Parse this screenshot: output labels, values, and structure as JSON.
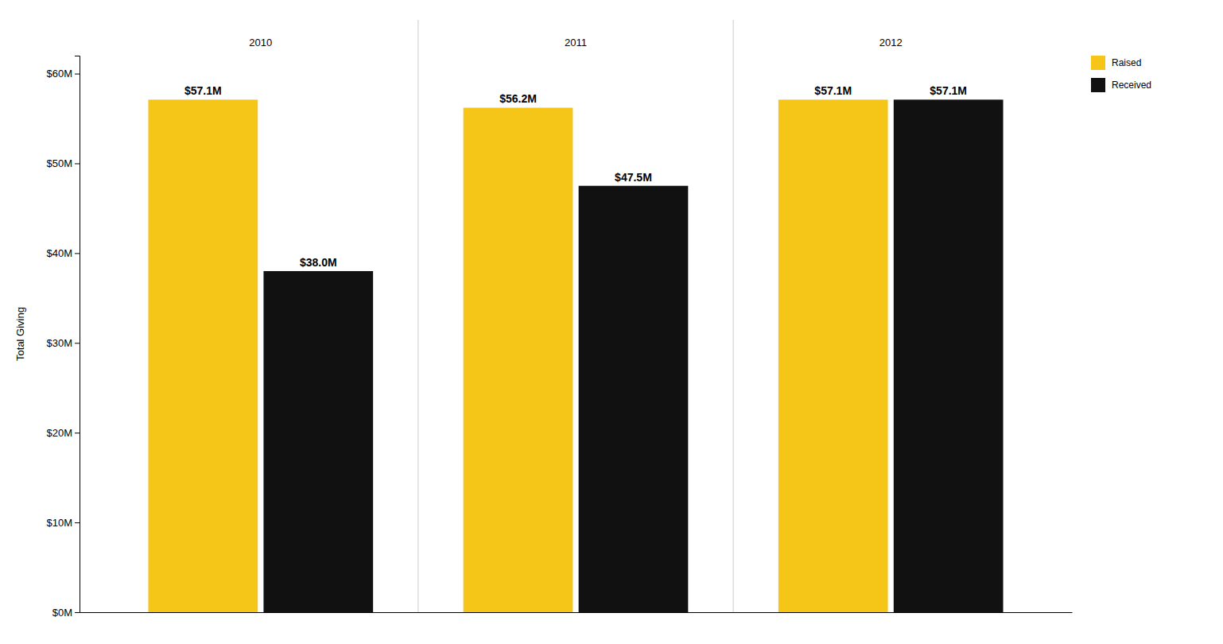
{
  "chart_data": {
    "type": "bar",
    "categories": [
      "2010",
      "2011",
      "2012"
    ],
    "series": [
      {
        "name": "Raised",
        "color": "#F5C518",
        "values": [
          57.1,
          56.2,
          57.1
        ],
        "value_labels": [
          "$57.1M",
          "$56.2M",
          "$57.1M"
        ]
      },
      {
        "name": "Received",
        "color": "#111111",
        "values": [
          38.0,
          47.5,
          57.1
        ],
        "value_labels": [
          "$38.0M",
          "$47.5M",
          "$57.1M"
        ]
      }
    ],
    "ylabel": "Total Giving",
    "ylim": [
      0,
      62
    ],
    "yticks": [
      {
        "value": 0,
        "label": "$0M"
      },
      {
        "value": 10,
        "label": "$10M"
      },
      {
        "value": 20,
        "label": "$20M"
      },
      {
        "value": 30,
        "label": "$30M"
      },
      {
        "value": 40,
        "label": "$40M"
      },
      {
        "value": 50,
        "label": "$50M"
      },
      {
        "value": 60,
        "label": "$60M"
      }
    ],
    "data_labels": true,
    "legend": "upper right",
    "grid": false
  }
}
